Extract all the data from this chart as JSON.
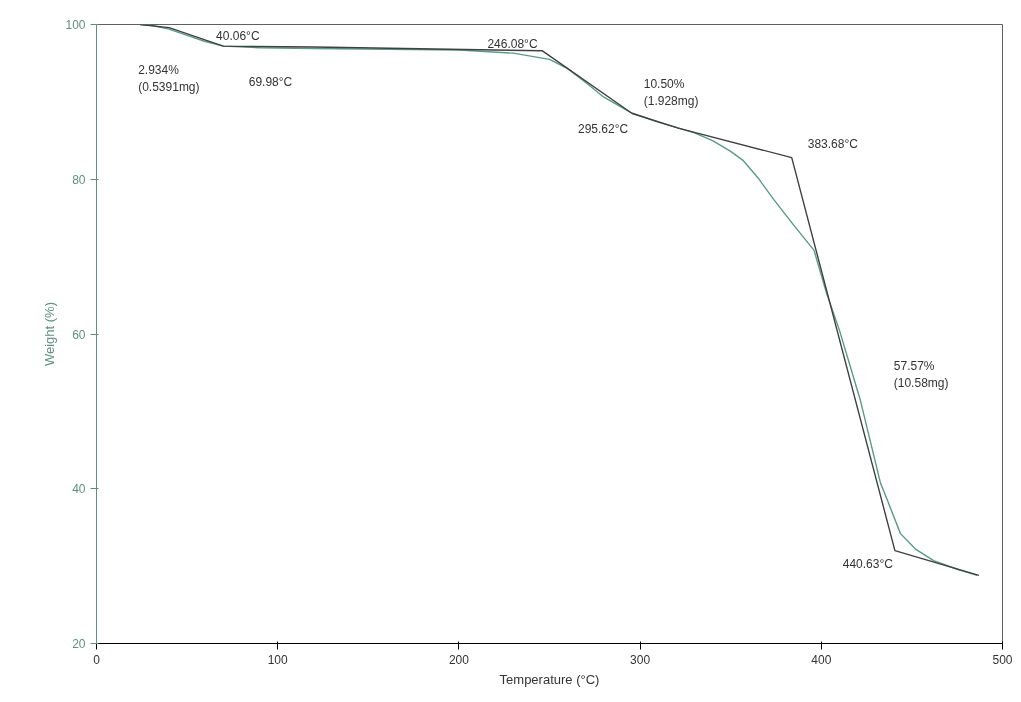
{
  "chart_data": {
    "type": "line",
    "xlabel": "Temperature (°C)",
    "ylabel": "Weight (%)",
    "xlim": [
      0,
      500
    ],
    "ylim": [
      20,
      100
    ],
    "xticks": [
      0,
      100,
      200,
      300,
      400,
      500
    ],
    "yticks": [
      20,
      40,
      60,
      80,
      100
    ],
    "grid": false,
    "marker": "none",
    "line_style": "solid",
    "series": [
      {
        "color": "#5a9a8a",
        "x": [
          24,
          30,
          40,
          50,
          60,
          70,
          90,
          120,
          160,
          200,
          230,
          250,
          260,
          270,
          280,
          295,
          310,
          320,
          330,
          340,
          350,
          357,
          365,
          374,
          385,
          396,
          403,
          410,
          421.6,
          432.7,
          436.5,
          443.7,
          452,
          462,
          475,
          486
        ],
        "values": [
          100,
          99.9,
          99.4,
          98.6,
          97.8,
          97.2,
          97.0,
          96.9,
          96.8,
          96.7,
          96.3,
          95.5,
          94.3,
          92.5,
          90.6,
          88.6,
          87.4,
          86.7,
          86.0,
          85.0,
          83.6,
          82.4,
          80.2,
          77.3,
          74.0,
          70.8,
          65.2,
          60.5,
          51.4,
          40.7,
          38.5,
          34.2,
          32.2,
          30.7,
          29.6,
          28.8
        ]
      },
      {
        "color": "#404040",
        "x": [
          24,
          40.06,
          69.98,
          120,
          246.08,
          295.62,
          321,
          383.68,
          440.63,
          487
        ],
        "values": [
          100,
          99.6,
          97.2,
          97.1,
          96.6,
          88.5,
          86.6,
          82.8,
          32.0,
          28.8
        ]
      }
    ],
    "annotations": [
      "40.06°C",
      "2.934%\n(0.5391mg)",
      "69.98°C",
      {
        "text": "246.08°C",
        "x": 246.08,
        "y": 96.6
      },
      "10.50%\n(1.928mg)",
      {
        "text": "295.62°C",
        "x": 295.62,
        "y": 88.5
      },
      {
        "text": "383.68°C",
        "x": 383.68,
        "y": 82.8
      },
      "57.57%\n(10.58mg)",
      {
        "text": "440.63°C",
        "x": 440.63,
        "y": 32.0
      }
    ]
  }
}
